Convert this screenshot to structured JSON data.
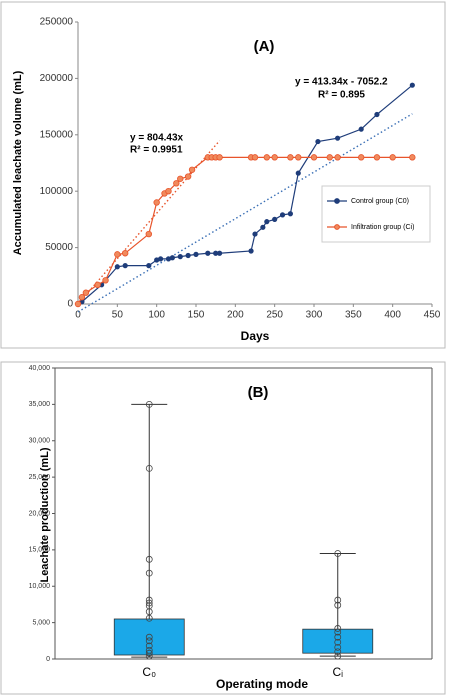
{
  "chart_data": [
    {
      "type": "line",
      "title": "(A)",
      "x_label": "Days",
      "y_label": "Accumulated leachate volume (mL)",
      "xlim": [
        0,
        450
      ],
      "xticks": [
        0,
        50,
        100,
        150,
        200,
        250,
        300,
        350,
        400,
        450
      ],
      "ylim": [
        0,
        250000
      ],
      "yticks": [
        0,
        50000,
        100000,
        150000,
        200000,
        250000
      ],
      "legend": "center right",
      "series": [
        {
          "name": "Control group (C0)",
          "color": "#1f3d7a",
          "x": [
            5,
            30,
            50,
            60,
            90,
            100,
            105,
            115,
            120,
            130,
            140,
            150,
            165,
            175,
            180,
            220,
            225,
            235,
            240,
            250,
            260,
            270,
            280,
            305,
            330,
            360,
            380,
            425
          ],
          "values": [
            2000,
            17000,
            33000,
            34000,
            34000,
            39000,
            40000,
            40000,
            41000,
            42000,
            43000,
            44000,
            45000,
            45000,
            45000,
            47000,
            62000,
            68000,
            73000,
            75000,
            79000,
            80000,
            116000,
            144000,
            147000,
            155000,
            168000,
            194000
          ]
        },
        {
          "name": "Infiltration group (Ci)",
          "color": "#e8542b",
          "x": [
            0,
            5,
            10,
            25,
            35,
            50,
            60,
            90,
            100,
            110,
            115,
            125,
            130,
            140,
            145,
            165,
            170,
            175,
            180,
            220,
            225,
            240,
            250,
            270,
            280,
            300,
            320,
            330,
            360,
            380,
            400,
            425
          ],
          "values": [
            0,
            6000,
            10000,
            17000,
            21000,
            44000,
            45000,
            62000,
            90000,
            98000,
            100000,
            107000,
            111000,
            113000,
            119000,
            130000,
            130000,
            130000,
            130000,
            130000,
            130000,
            130000,
            130000,
            130000,
            130000,
            130000,
            130000,
            130000,
            130000,
            130000,
            130000,
            130000
          ]
        }
      ],
      "trendlines": [
        {
          "color": "#e8542b",
          "x": [
            0,
            180
          ],
          "values": [
            0,
            144797
          ]
        },
        {
          "color": "#3a6fb5",
          "x": [
            0,
            425
          ],
          "values": [
            -7052,
            168617
          ]
        }
      ],
      "annotations": [
        {
          "text": "y = 804.43x",
          "color": "#c0392b"
        },
        {
          "text": "R² = 0.9951",
          "color": "#c0392b"
        },
        {
          "text": "y = 413.34x - 7052.2",
          "color": "#1f3d7a"
        },
        {
          "text": "R² = 0.895",
          "color": "#1f3d7a"
        }
      ]
    },
    {
      "type": "box",
      "title": "(B)",
      "x_label": "Operating mode",
      "y_label": "Leachate production (mL)",
      "ylim": [
        0,
        40000
      ],
      "yticks": [
        0,
        {
          "value": 5000,
          "label": "5,000"
        },
        {
          "value": 10000,
          "label": "10,000"
        },
        {
          "value": 15000,
          "label": "15,000"
        },
        {
          "value": 20000,
          "label": "20,000"
        },
        {
          "value": 25000,
          "label": "25,000"
        },
        {
          "value": 30000,
          "label": "30,000"
        },
        {
          "value": 35000,
          "label": "35,000"
        },
        {
          "value": 40000,
          "label": "40,000"
        }
      ],
      "categories": [
        "C₀",
        "Cᵢ"
      ],
      "color": "#1ba8e8",
      "whisker_low": [
        250,
        400
      ],
      "box_low": [
        550,
        800
      ],
      "box_high": [
        5500,
        4100
      ],
      "whisker_high": [
        35000,
        14500
      ],
      "points": [
        [
          35000,
          26200,
          13700,
          11800,
          8100,
          7700,
          7300,
          6500,
          5600,
          3000,
          2500,
          1800,
          1200,
          800,
          400
        ],
        [
          14500,
          8100,
          7400,
          4200,
          3700,
          3000,
          2300,
          1600,
          1000,
          400
        ]
      ]
    }
  ]
}
